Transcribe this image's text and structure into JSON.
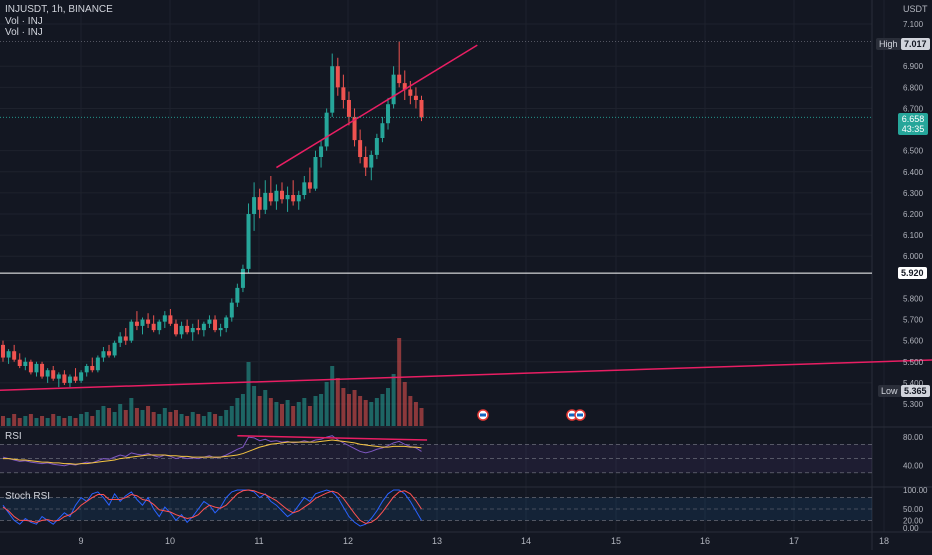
{
  "header": {
    "symbol_line": "INJUSDT, 1h, BINANCE",
    "vol_line_1": "Vol · INJ",
    "vol_line_2": "Vol · INJ",
    "currency": "USDT"
  },
  "colors": {
    "background": "#131722",
    "up": "#26a69a",
    "down": "#ef5350",
    "trendline": "#e91e63",
    "rsi_line": "#7e57c2",
    "rsi_ma": "#f5c542",
    "stoch_k": "#2962ff",
    "stoch_d": "#ff5252",
    "hline": "#ffffff"
  },
  "price_axis": {
    "ticks": [
      "7.100",
      "6.900",
      "6.800",
      "6.700",
      "6.500",
      "6.400",
      "6.300",
      "6.200",
      "6.100",
      "6.000",
      "5.800",
      "5.700",
      "5.600",
      "5.500",
      "5.400",
      "5.300"
    ],
    "high_label": "High",
    "high_value": "7.017",
    "low_label": "Low",
    "low_value": "5.365",
    "last_price": "6.658",
    "countdown": "43:35",
    "hline_value": "5.920"
  },
  "rsi_panel": {
    "title": "RSI",
    "ticks": [
      "80.00",
      "40.00"
    ]
  },
  "stoch_panel": {
    "title": "Stoch RSI",
    "ticks": [
      "100.00",
      "50.00",
      "20.00",
      "0.00"
    ]
  },
  "time_axis": {
    "labels": [
      "9",
      "10",
      "11",
      "12",
      "13",
      "14",
      "15",
      "16",
      "17",
      "18"
    ]
  },
  "chart_data": {
    "type": "candlestick",
    "symbol": "INJUSDT",
    "interval": "1h",
    "exchange": "BINANCE",
    "ylim": [
      5.3,
      7.1
    ],
    "x_labels": [
      "9",
      "10",
      "11",
      "12",
      "13",
      "14",
      "15",
      "16",
      "17",
      "18"
    ],
    "high": 7.017,
    "low": 5.365,
    "last": 6.658,
    "horizontal_line": 5.92,
    "candles": [
      [
        5.58,
        5.6,
        5.5,
        5.52
      ],
      [
        5.52,
        5.56,
        5.49,
        5.55
      ],
      [
        5.55,
        5.58,
        5.5,
        5.51
      ],
      [
        5.51,
        5.54,
        5.47,
        5.48
      ],
      [
        5.48,
        5.52,
        5.46,
        5.5
      ],
      [
        5.5,
        5.51,
        5.44,
        5.45
      ],
      [
        5.45,
        5.5,
        5.43,
        5.49
      ],
      [
        5.49,
        5.5,
        5.42,
        5.43
      ],
      [
        5.43,
        5.47,
        5.4,
        5.46
      ],
      [
        5.46,
        5.48,
        5.41,
        5.42
      ],
      [
        5.42,
        5.45,
        5.38,
        5.44
      ],
      [
        5.44,
        5.46,
        5.39,
        5.4
      ],
      [
        5.4,
        5.44,
        5.38,
        5.43
      ],
      [
        5.43,
        5.47,
        5.4,
        5.41
      ],
      [
        5.41,
        5.46,
        5.4,
        5.45
      ],
      [
        5.45,
        5.49,
        5.43,
        5.48
      ],
      [
        5.48,
        5.52,
        5.45,
        5.46
      ],
      [
        5.46,
        5.53,
        5.45,
        5.52
      ],
      [
        5.52,
        5.57,
        5.5,
        5.55
      ],
      [
        5.55,
        5.58,
        5.52,
        5.53
      ],
      [
        5.53,
        5.6,
        5.52,
        5.59
      ],
      [
        5.59,
        5.64,
        5.57,
        5.62
      ],
      [
        5.62,
        5.66,
        5.58,
        5.6
      ],
      [
        5.6,
        5.7,
        5.59,
        5.69
      ],
      [
        5.69,
        5.74,
        5.65,
        5.67
      ],
      [
        5.67,
        5.71,
        5.63,
        5.7
      ],
      [
        5.7,
        5.73,
        5.66,
        5.68
      ],
      [
        5.68,
        5.72,
        5.64,
        5.65
      ],
      [
        5.65,
        5.7,
        5.63,
        5.69
      ],
      [
        5.69,
        5.74,
        5.66,
        5.72
      ],
      [
        5.72,
        5.75,
        5.67,
        5.68
      ],
      [
        5.68,
        5.7,
        5.62,
        5.63
      ],
      [
        5.63,
        5.69,
        5.61,
        5.67
      ],
      [
        5.67,
        5.7,
        5.63,
        5.64
      ],
      [
        5.64,
        5.68,
        5.6,
        5.66
      ],
      [
        5.66,
        5.7,
        5.63,
        5.65
      ],
      [
        5.65,
        5.69,
        5.62,
        5.68
      ],
      [
        5.68,
        5.72,
        5.66,
        5.7
      ],
      [
        5.7,
        5.72,
        5.64,
        5.65
      ],
      [
        5.65,
        5.68,
        5.62,
        5.66
      ],
      [
        5.66,
        5.72,
        5.64,
        5.71
      ],
      [
        5.71,
        5.8,
        5.69,
        5.78
      ],
      [
        5.78,
        5.87,
        5.76,
        5.85
      ],
      [
        5.85,
        5.96,
        5.83,
        5.94
      ],
      [
        5.94,
        6.25,
        5.92,
        6.2
      ],
      [
        6.2,
        6.35,
        6.12,
        6.28
      ],
      [
        6.28,
        6.32,
        6.18,
        6.22
      ],
      [
        6.22,
        6.36,
        6.2,
        6.3
      ],
      [
        6.3,
        6.38,
        6.24,
        6.26
      ],
      [
        6.26,
        6.34,
        6.22,
        6.31
      ],
      [
        6.31,
        6.35,
        6.25,
        6.27
      ],
      [
        6.27,
        6.33,
        6.21,
        6.29
      ],
      [
        6.29,
        6.36,
        6.24,
        6.26
      ],
      [
        6.26,
        6.31,
        6.22,
        6.29
      ],
      [
        6.29,
        6.38,
        6.27,
        6.35
      ],
      [
        6.35,
        6.42,
        6.3,
        6.32
      ],
      [
        6.32,
        6.5,
        6.31,
        6.47
      ],
      [
        6.47,
        6.55,
        6.42,
        6.52
      ],
      [
        6.52,
        6.7,
        6.5,
        6.68
      ],
      [
        6.68,
        6.96,
        6.66,
        6.9
      ],
      [
        6.9,
        6.94,
        6.76,
        6.8
      ],
      [
        6.8,
        6.86,
        6.7,
        6.74
      ],
      [
        6.74,
        6.78,
        6.62,
        6.66
      ],
      [
        6.66,
        6.7,
        6.52,
        6.55
      ],
      [
        6.55,
        6.6,
        6.44,
        6.47
      ],
      [
        6.47,
        6.52,
        6.38,
        6.42
      ],
      [
        6.42,
        6.5,
        6.36,
        6.48
      ],
      [
        6.48,
        6.58,
        6.46,
        6.56
      ],
      [
        6.56,
        6.66,
        6.54,
        6.63
      ],
      [
        6.63,
        6.75,
        6.6,
        6.72
      ],
      [
        6.72,
        6.9,
        6.7,
        6.86
      ],
      [
        6.86,
        7.017,
        6.8,
        6.82
      ],
      [
        6.82,
        6.88,
        6.74,
        6.79
      ],
      [
        6.79,
        6.83,
        6.72,
        6.76
      ],
      [
        6.76,
        6.8,
        6.7,
        6.74
      ],
      [
        6.74,
        6.76,
        6.64,
        6.658
      ]
    ],
    "volume": [
      0.5,
      0.4,
      0.6,
      0.4,
      0.5,
      0.6,
      0.4,
      0.5,
      0.4,
      0.6,
      0.5,
      0.4,
      0.5,
      0.4,
      0.6,
      0.7,
      0.5,
      0.8,
      1.0,
      0.9,
      0.7,
      1.1,
      0.8,
      1.4,
      0.9,
      0.8,
      1.0,
      0.7,
      0.6,
      0.9,
      0.7,
      0.8,
      0.6,
      0.5,
      0.7,
      0.6,
      0.5,
      0.7,
      0.6,
      0.5,
      0.8,
      1.0,
      1.4,
      1.6,
      3.2,
      2.0,
      1.5,
      1.8,
      1.4,
      1.2,
      1.1,
      1.3,
      1.0,
      1.2,
      1.4,
      1.0,
      1.5,
      1.6,
      2.2,
      3.0,
      2.4,
      1.9,
      1.6,
      1.8,
      1.5,
      1.3,
      1.2,
      1.4,
      1.6,
      1.9,
      2.6,
      4.4,
      2.2,
      1.5,
      1.2,
      0.9
    ],
    "rsi": [
      52,
      50,
      48,
      46,
      47,
      45,
      44,
      43,
      44,
      42,
      41,
      40,
      42,
      41,
      43,
      45,
      44,
      47,
      50,
      49,
      52,
      55,
      53,
      58,
      56,
      55,
      57,
      54,
      52,
      55,
      53,
      50,
      52,
      50,
      51,
      50,
      52,
      54,
      51,
      52,
      55,
      59,
      63,
      66,
      80,
      79,
      75,
      77,
      74,
      75,
      73,
      74,
      72,
      73,
      75,
      73,
      76,
      77,
      80,
      82,
      76,
      72,
      68,
      64,
      60,
      58,
      60,
      63,
      65,
      68,
      72,
      74,
      70,
      67,
      65,
      60
    ],
    "rsi_ma": [
      50,
      50,
      49,
      48,
      48,
      47,
      46,
      45,
      45,
      44,
      44,
      43,
      43,
      42,
      43,
      43,
      44,
      45,
      46,
      47,
      48,
      50,
      51,
      52,
      53,
      54,
      55,
      55,
      55,
      55,
      54,
      54,
      53,
      53,
      52,
      52,
      52,
      52,
      52,
      52,
      53,
      54,
      55,
      57,
      60,
      63,
      66,
      68,
      70,
      71,
      72,
      73,
      73,
      73,
      73,
      73,
      73,
      74,
      75,
      76,
      75,
      74,
      73,
      72,
      70,
      69,
      68,
      67,
      66,
      66,
      67,
      67,
      67,
      66,
      66,
      65
    ],
    "stoch_k": [
      60,
      40,
      20,
      10,
      25,
      15,
      10,
      30,
      20,
      10,
      25,
      40,
      30,
      60,
      80,
      70,
      90,
      95,
      80,
      60,
      90,
      70,
      85,
      95,
      75,
      60,
      80,
      50,
      30,
      55,
      40,
      20,
      35,
      15,
      30,
      50,
      70,
      60,
      40,
      55,
      80,
      95,
      100,
      100,
      100,
      95,
      80,
      90,
      70,
      60,
      45,
      30,
      40,
      60,
      80,
      70,
      90,
      95,
      100,
      95,
      80,
      55,
      30,
      15,
      5,
      10,
      25,
      45,
      70,
      90,
      100,
      100,
      90,
      70,
      45,
      20
    ],
    "stoch_d": [
      55,
      45,
      30,
      20,
      20,
      18,
      15,
      20,
      22,
      18,
      20,
      30,
      35,
      45,
      60,
      70,
      80,
      88,
      88,
      75,
      75,
      75,
      80,
      88,
      85,
      75,
      72,
      62,
      48,
      45,
      42,
      35,
      30,
      25,
      28,
      35,
      50,
      60,
      55,
      52,
      60,
      75,
      90,
      98,
      100,
      98,
      92,
      88,
      80,
      72,
      60,
      48,
      40,
      45,
      55,
      65,
      78,
      85,
      92,
      97,
      92,
      78,
      58,
      38,
      20,
      12,
      15,
      25,
      42,
      62,
      82,
      95,
      98,
      90,
      72,
      50
    ],
    "trendlines": [
      {
        "from_index": 49,
        "from_price": 6.42,
        "to_index": 85,
        "to_price": 7.0
      },
      {
        "from_index": -1,
        "from_price": 5.365,
        "to_index": 180,
        "to_price": 5.52
      }
    ]
  }
}
